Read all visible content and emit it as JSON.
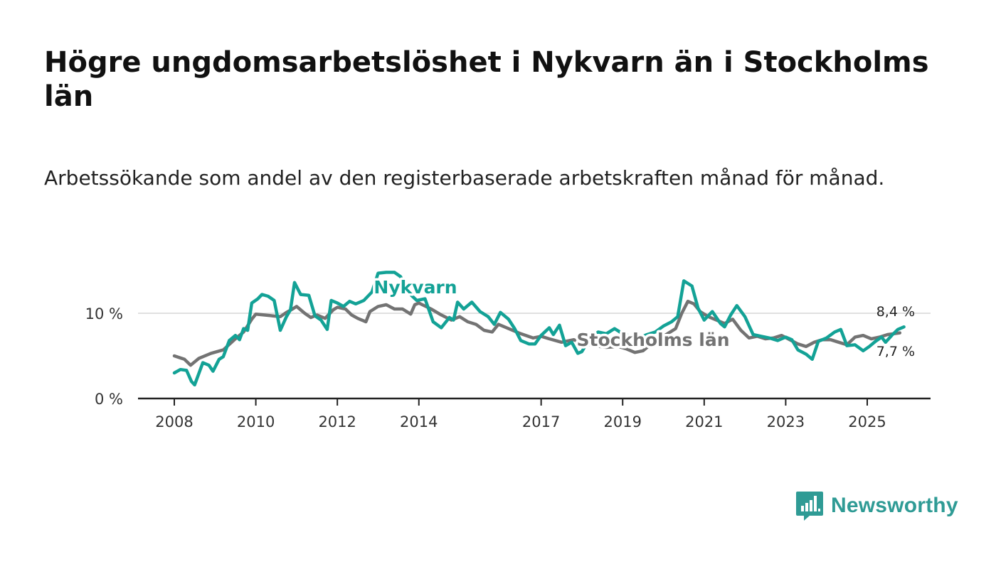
{
  "header": {
    "title": "Högre ungdomsarbetslöshet i Nykvarn än i Stockholms län",
    "subtitle": "Arbetssökande som andel av den registerbaserade arbetskraften månad för månad."
  },
  "brand": {
    "name": "Newsworthy",
    "icon": "newsworthy-logo-icon",
    "color": "#2f9b95"
  },
  "chart_data": {
    "type": "line",
    "title": "Högre ungdomsarbetslöshet i Nykvarn än i Stockholms län",
    "subtitle": "Arbetssökande som andel av den registerbaserade arbetskraften månad för månad.",
    "xlabel": "",
    "ylabel": "",
    "xlim": [
      2007.4,
      2026.5
    ],
    "ylim": [
      0,
      15
    ],
    "yticks": [
      {
        "value": 0,
        "label": "0 %"
      },
      {
        "value": 10,
        "label": "10 %"
      }
    ],
    "xticks": [
      {
        "value": 2008,
        "label": "2008"
      },
      {
        "value": 2010,
        "label": "2010"
      },
      {
        "value": 2012,
        "label": "2012"
      },
      {
        "value": 2014,
        "label": "2014"
      },
      {
        "value": 2017,
        "label": "2017"
      },
      {
        "value": 2019,
        "label": "2019"
      },
      {
        "value": 2021,
        "label": "2021"
      },
      {
        "value": 2023,
        "label": "2023"
      },
      {
        "value": 2025,
        "label": "2025"
      }
    ],
    "grid": "horizontal",
    "series": [
      {
        "name": "Stockholms län",
        "color": "#737373",
        "end_label": "7,7 %",
        "points": [
          [
            2008.0,
            5.0
          ],
          [
            2008.25,
            4.6
          ],
          [
            2008.4,
            3.9
          ],
          [
            2008.6,
            4.7
          ],
          [
            2008.9,
            5.3
          ],
          [
            2009.2,
            5.7
          ],
          [
            2009.5,
            7.0
          ],
          [
            2009.7,
            7.8
          ],
          [
            2009.9,
            9.3
          ],
          [
            2010.0,
            9.9
          ],
          [
            2010.2,
            9.8
          ],
          [
            2010.4,
            9.7
          ],
          [
            2010.6,
            9.6
          ],
          [
            2010.75,
            10.1
          ],
          [
            2010.9,
            10.5
          ],
          [
            2011.0,
            10.8
          ],
          [
            2011.2,
            10.0
          ],
          [
            2011.35,
            9.5
          ],
          [
            2011.5,
            9.8
          ],
          [
            2011.7,
            9.4
          ],
          [
            2011.9,
            10.4
          ],
          [
            2012.0,
            10.7
          ],
          [
            2012.2,
            10.5
          ],
          [
            2012.35,
            9.8
          ],
          [
            2012.5,
            9.4
          ],
          [
            2012.7,
            9.0
          ],
          [
            2012.8,
            10.2
          ],
          [
            2013.0,
            10.8
          ],
          [
            2013.2,
            11.0
          ],
          [
            2013.4,
            10.5
          ],
          [
            2013.6,
            10.5
          ],
          [
            2013.8,
            9.9
          ],
          [
            2013.9,
            11.0
          ],
          [
            2014.0,
            11.2
          ],
          [
            2014.3,
            10.5
          ],
          [
            2014.55,
            9.8
          ],
          [
            2014.8,
            9.2
          ],
          [
            2015.0,
            9.6
          ],
          [
            2015.2,
            9.0
          ],
          [
            2015.4,
            8.7
          ],
          [
            2015.6,
            8.0
          ],
          [
            2015.8,
            7.8
          ],
          [
            2015.95,
            8.7
          ],
          [
            2016.2,
            8.2
          ],
          [
            2016.5,
            7.6
          ],
          [
            2016.8,
            7.1
          ],
          [
            2017.0,
            7.3
          ],
          [
            2017.2,
            7.0
          ],
          [
            2017.5,
            6.6
          ],
          [
            2017.8,
            6.9
          ],
          [
            2018.0,
            6.5
          ],
          [
            2018.3,
            6.2
          ],
          [
            2018.6,
            6.0
          ],
          [
            2018.9,
            6.1
          ],
          [
            2019.1,
            5.8
          ],
          [
            2019.3,
            5.4
          ],
          [
            2019.5,
            5.6
          ],
          [
            2019.7,
            6.4
          ],
          [
            2019.9,
            7.0
          ],
          [
            2020.1,
            7.6
          ],
          [
            2020.3,
            8.2
          ],
          [
            2020.45,
            10.0
          ],
          [
            2020.6,
            11.4
          ],
          [
            2020.75,
            11.1
          ],
          [
            2020.9,
            10.2
          ],
          [
            2021.1,
            9.6
          ],
          [
            2021.3,
            9.2
          ],
          [
            2021.5,
            8.8
          ],
          [
            2021.7,
            9.3
          ],
          [
            2021.9,
            8.0
          ],
          [
            2022.1,
            7.1
          ],
          [
            2022.3,
            7.3
          ],
          [
            2022.5,
            7.0
          ],
          [
            2022.7,
            7.1
          ],
          [
            2022.9,
            7.4
          ],
          [
            2023.1,
            6.9
          ],
          [
            2023.3,
            6.4
          ],
          [
            2023.5,
            6.1
          ],
          [
            2023.7,
            6.6
          ],
          [
            2023.9,
            6.9
          ],
          [
            2024.1,
            6.9
          ],
          [
            2024.3,
            6.6
          ],
          [
            2024.5,
            6.3
          ],
          [
            2024.7,
            7.2
          ],
          [
            2024.9,
            7.4
          ],
          [
            2025.1,
            7.0
          ],
          [
            2025.3,
            7.2
          ],
          [
            2025.5,
            7.5
          ],
          [
            2025.65,
            7.6
          ],
          [
            2025.8,
            7.7
          ]
        ]
      },
      {
        "name": "Nykvarn",
        "color": "#13a296",
        "end_label": "8,4 %",
        "points": [
          [
            2008.0,
            3.0
          ],
          [
            2008.15,
            3.4
          ],
          [
            2008.3,
            3.3
          ],
          [
            2008.42,
            2.0
          ],
          [
            2008.5,
            1.6
          ],
          [
            2008.7,
            4.2
          ],
          [
            2008.85,
            3.9
          ],
          [
            2008.95,
            3.2
          ],
          [
            2009.1,
            4.6
          ],
          [
            2009.2,
            4.9
          ],
          [
            2009.35,
            6.8
          ],
          [
            2009.5,
            7.4
          ],
          [
            2009.6,
            6.9
          ],
          [
            2009.7,
            8.2
          ],
          [
            2009.8,
            8.0
          ],
          [
            2009.9,
            11.2
          ],
          [
            2010.05,
            11.7
          ],
          [
            2010.15,
            12.2
          ],
          [
            2010.3,
            12.0
          ],
          [
            2010.45,
            11.5
          ],
          [
            2010.6,
            8.0
          ],
          [
            2010.75,
            9.6
          ],
          [
            2010.85,
            10.4
          ],
          [
            2010.95,
            13.6
          ],
          [
            2011.1,
            12.2
          ],
          [
            2011.3,
            12.1
          ],
          [
            2011.45,
            9.7
          ],
          [
            2011.6,
            9.2
          ],
          [
            2011.75,
            8.1
          ],
          [
            2011.85,
            11.5
          ],
          [
            2012.0,
            11.2
          ],
          [
            2012.15,
            10.8
          ],
          [
            2012.3,
            11.4
          ],
          [
            2012.45,
            11.1
          ],
          [
            2012.65,
            11.5
          ],
          [
            2012.85,
            12.5
          ],
          [
            2013.0,
            14.7
          ],
          [
            2013.2,
            14.8
          ],
          [
            2013.4,
            14.8
          ],
          [
            2013.55,
            14.3
          ],
          [
            2013.75,
            12.4
          ],
          [
            2013.95,
            11.5
          ],
          [
            2014.15,
            11.7
          ],
          [
            2014.35,
            9.0
          ],
          [
            2014.55,
            8.3
          ],
          [
            2014.75,
            9.5
          ],
          [
            2014.85,
            9.2
          ],
          [
            2014.95,
            11.3
          ],
          [
            2015.1,
            10.5
          ],
          [
            2015.3,
            11.3
          ],
          [
            2015.5,
            10.2
          ],
          [
            2015.7,
            9.6
          ],
          [
            2015.85,
            8.7
          ],
          [
            2016.0,
            10.1
          ],
          [
            2016.2,
            9.3
          ],
          [
            2016.35,
            8.2
          ],
          [
            2016.5,
            6.8
          ],
          [
            2016.7,
            6.4
          ],
          [
            2016.85,
            6.4
          ],
          [
            2017.0,
            7.4
          ],
          [
            2017.2,
            8.3
          ],
          [
            2017.3,
            7.5
          ],
          [
            2017.45,
            8.6
          ],
          [
            2017.6,
            6.2
          ],
          [
            2017.75,
            6.6
          ],
          [
            2017.9,
            5.3
          ],
          [
            2018.0,
            5.5
          ],
          [
            2018.2,
            7.1
          ],
          [
            2018.4,
            7.8
          ],
          [
            2018.6,
            7.6
          ],
          [
            2018.8,
            8.2
          ],
          [
            2019.0,
            7.6
          ],
          [
            2019.2,
            7.3
          ],
          [
            2019.4,
            7.1
          ],
          [
            2019.6,
            7.5
          ],
          [
            2019.8,
            7.8
          ],
          [
            2020.0,
            8.5
          ],
          [
            2020.2,
            9.0
          ],
          [
            2020.35,
            9.6
          ],
          [
            2020.5,
            13.8
          ],
          [
            2020.7,
            13.2
          ],
          [
            2020.85,
            10.6
          ],
          [
            2021.0,
            9.2
          ],
          [
            2021.2,
            10.2
          ],
          [
            2021.4,
            8.8
          ],
          [
            2021.5,
            8.4
          ],
          [
            2021.65,
            9.8
          ],
          [
            2021.8,
            10.9
          ],
          [
            2022.0,
            9.6
          ],
          [
            2022.2,
            7.5
          ],
          [
            2022.4,
            7.3
          ],
          [
            2022.6,
            7.1
          ],
          [
            2022.8,
            6.8
          ],
          [
            2023.0,
            7.2
          ],
          [
            2023.15,
            6.9
          ],
          [
            2023.3,
            5.7
          ],
          [
            2023.5,
            5.2
          ],
          [
            2023.65,
            4.6
          ],
          [
            2023.8,
            6.7
          ],
          [
            2024.0,
            7.1
          ],
          [
            2024.2,
            7.8
          ],
          [
            2024.35,
            8.1
          ],
          [
            2024.5,
            6.2
          ],
          [
            2024.7,
            6.3
          ],
          [
            2024.9,
            5.6
          ],
          [
            2025.05,
            6.1
          ],
          [
            2025.2,
            6.7
          ],
          [
            2025.35,
            7.2
          ],
          [
            2025.45,
            6.6
          ],
          [
            2025.6,
            7.4
          ],
          [
            2025.75,
            8.1
          ],
          [
            2025.9,
            8.4
          ]
        ]
      }
    ],
    "annotations": [
      {
        "text": "Nykvarn",
        "series": "Nykvarn",
        "x": 2013.4,
        "y": 12.5
      },
      {
        "text": "Stockholms län",
        "series": "Stockholms län",
        "x": 2017.8,
        "y": 6.0
      }
    ]
  }
}
